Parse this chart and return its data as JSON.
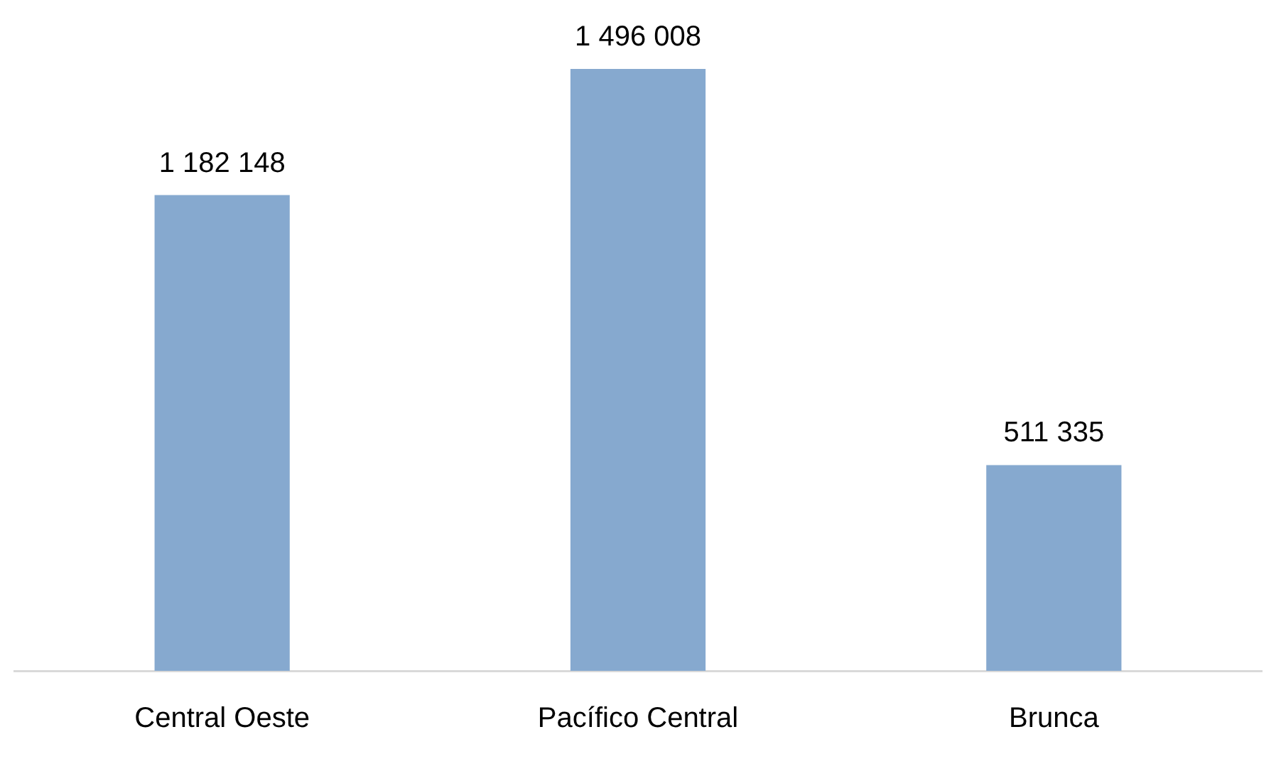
{
  "chart_data": {
    "type": "bar",
    "categories": [
      "Central Oeste",
      "Pacífico Central",
      "Brunca"
    ],
    "values": [
      1182148,
      1496008,
      511335
    ],
    "value_labels": [
      "1 182 148",
      "1 496 008",
      "511 335"
    ],
    "color": "#86a9cf",
    "grid": false,
    "legend": false,
    "tick_labels": "x"
  }
}
